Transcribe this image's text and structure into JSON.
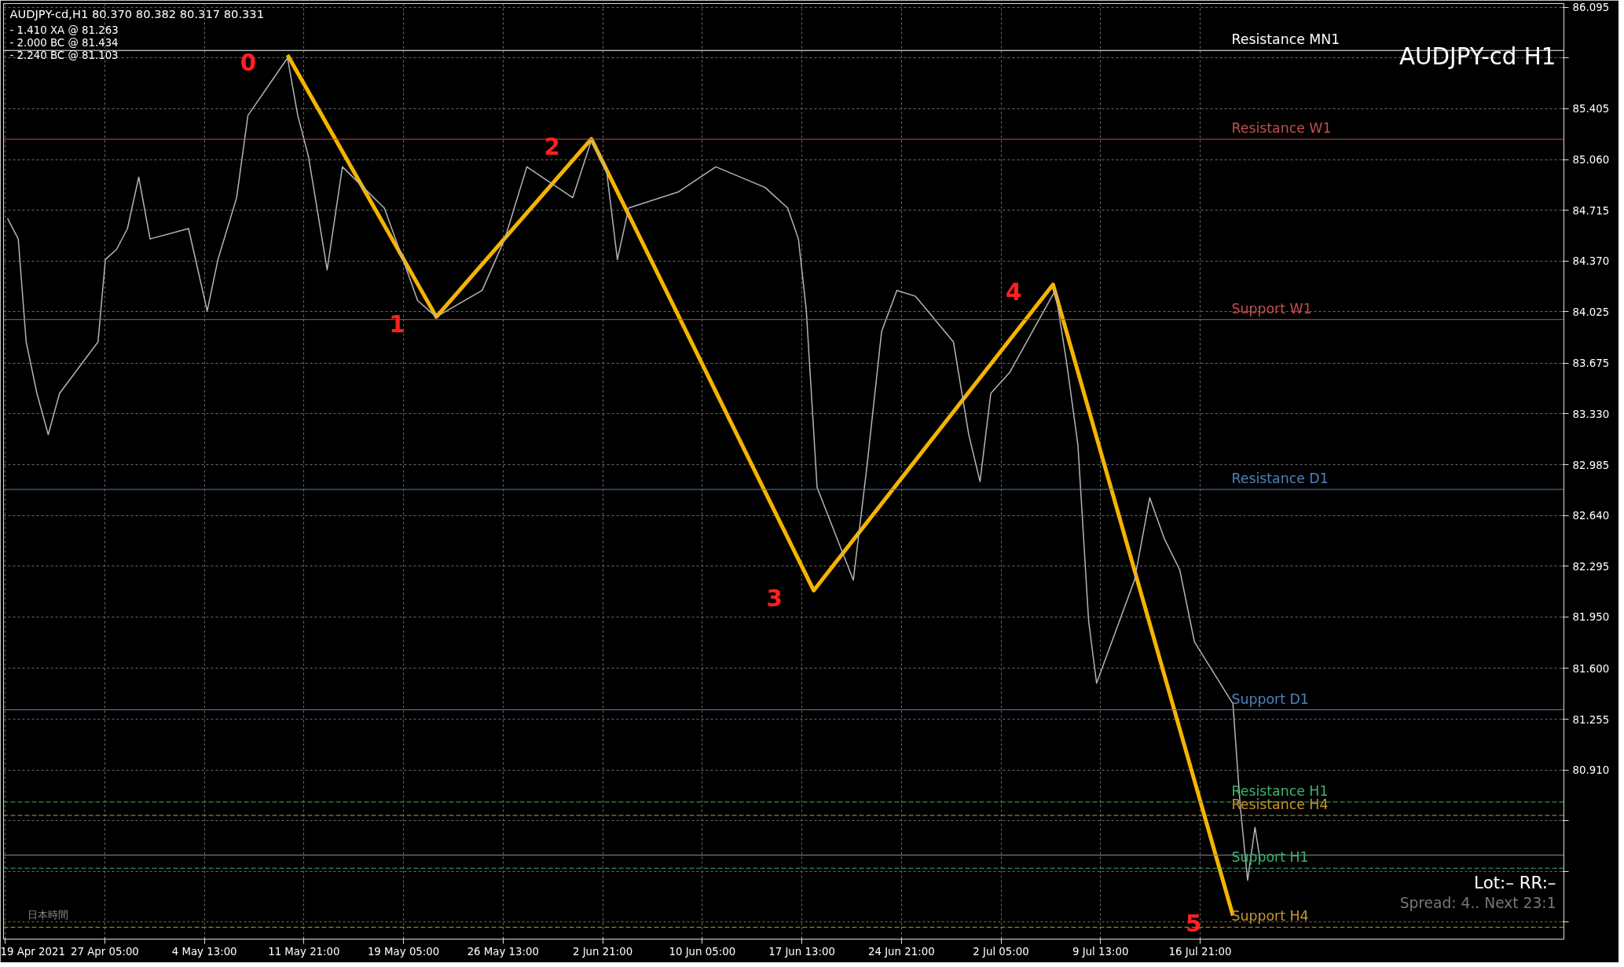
{
  "chart_data": {
    "type": "line",
    "title": "AUDJPY-cd H1",
    "annotations": [
      "AUDJPY-cd,H1  80.370 80.382 80.317 80.331",
      "- 1.410 XA @ 81.263",
      "- 2.000 BC @ 81.434",
      "- 2.240 BC @ 81.103",
      "日本時間",
      "Lot:– RR:–",
      "Spread: 4.. Next 23:1",
      {
        "text": "0",
        "x": "2021-05-10T16:00",
        "y": 85.77
      },
      {
        "text": "1",
        "x": "2021-05-21T15:00",
        "y": 83.99
      },
      {
        "text": "2",
        "x": "2021-06-02T01:00",
        "y": 85.2
      },
      {
        "text": "3",
        "x": "2021-06-18T10:00",
        "y": 82.13
      },
      {
        "text": "4",
        "x": "2021-07-06T01:00",
        "y": 84.21
      },
      {
        "text": "5",
        "x": "2021-07-19T07:00",
        "y": 79.92
      }
    ],
    "series": [
      {
        "color": "#b4b4b4",
        "x": [
          "2021-04-20T01:00",
          "2021-04-20T20:00",
          "2021-04-21T10:00",
          "2021-04-22T05:00",
          "2021-04-23T01:00",
          "2021-04-23T21:00",
          "2021-04-26T17:00",
          "2021-04-27T06:00",
          "2021-04-28T02:00",
          "2021-04-28T21:00",
          "2021-04-29T17:00",
          "2021-04-30T13:00",
          "2021-05-03T09:00",
          "2021-05-04T18:00",
          "2021-05-05T13:00",
          "2021-05-06T22:00",
          "2021-05-07T18:00",
          "2021-05-10T16:00",
          "2021-05-11T10:00",
          "2021-05-12T05:00",
          "2021-05-13T14:00",
          "2021-05-14T17:00",
          "2021-05-17T19:00",
          "2021-05-19T04:00",
          "2021-05-20T06:00",
          "2021-05-21T15:00",
          "2021-05-25T00:00",
          "2021-05-26T16:00",
          "2021-05-28T07:00",
          "2021-05-31T16:00",
          "2021-06-02T01:00",
          "2021-06-03T04:00",
          "2021-06-03T23:00",
          "2021-06-04T19:00",
          "2021-06-08T11:00",
          "2021-06-11T05:00",
          "2021-06-14T20:00",
          "2021-06-16T12:00",
          "2021-06-17T07:00",
          "2021-06-17T21:00",
          "2021-06-18T16:00",
          "2021-06-21T08:00",
          "2021-06-22T08:00",
          "2021-06-23T10:00",
          "2021-06-24T13:00",
          "2021-06-25T22:00",
          "2021-06-28T17:00",
          "2021-06-29T20:00",
          "2021-06-30T16:00",
          "2021-07-01T11:00",
          "2021-07-02T20:00",
          "2021-07-06T05:00",
          "2021-07-07T01:00",
          "2021-07-07T21:00",
          "2021-07-08T16:00",
          "2021-07-09T06:00",
          "2021-07-12T01:00",
          "2021-07-13T04:00",
          "2021-07-14T06:00",
          "2021-07-15T09:00",
          "2021-07-16T11:00",
          "2021-07-19T07:00",
          "2021-07-19T20:00",
          "2021-07-20T09:00",
          "2021-07-20T22:00",
          "2021-07-21T07:00"
        ],
        "values": [
          84.66,
          84.52,
          83.82,
          83.47,
          83.19,
          83.47,
          83.82,
          84.38,
          84.45,
          84.59,
          84.94,
          84.52,
          84.59,
          84.03,
          84.38,
          84.8,
          85.36,
          85.75,
          85.36,
          85.08,
          84.31,
          85.01,
          84.73,
          84.38,
          84.1,
          83.99,
          84.17,
          84.52,
          85.01,
          84.8,
          85.19,
          84.98,
          84.38,
          84.73,
          84.84,
          85.01,
          84.87,
          84.73,
          84.52,
          84.03,
          82.83,
          82.2,
          82.97,
          83.89,
          84.17,
          84.13,
          83.82,
          83.19,
          82.87,
          83.47,
          83.61,
          84.17,
          83.68,
          83.12,
          81.92,
          81.5,
          82.2,
          82.76,
          82.48,
          82.27,
          81.78,
          81.36,
          80.66,
          80.16,
          80.52,
          80.3
        ]
      },
      {
        "color": "#f5b400",
        "marker": "none",
        "x": [
          "2021-05-10T16:00",
          "2021-05-21T15:00",
          "2021-06-02T01:00",
          "2021-06-18T10:00",
          "2021-07-06T01:00",
          "2021-07-19T07:00"
        ],
        "values": [
          85.77,
          83.99,
          85.2,
          82.13,
          84.21,
          79.92
        ]
      }
    ],
    "xlim": [
      "2021-04-19T18:00",
      "2021-08-12T16:00"
    ],
    "xticks": [
      {
        "value": "2021-04-19T21:00",
        "label": "19 Apr 2021"
      },
      {
        "value": "2021-04-27T05:00",
        "label": "27 Apr 05:00"
      },
      {
        "value": "2021-05-04T13:00",
        "label": "4 May 13:00"
      },
      {
        "value": "2021-05-11T21:00",
        "label": "11 May 21:00"
      },
      {
        "value": "2021-05-19T05:00",
        "label": "19 May 05:00"
      },
      {
        "value": "2021-05-26T13:00",
        "label": "26 May 13:00"
      },
      {
        "value": "2021-06-02T21:00",
        "label": "2 Jun 21:00"
      },
      {
        "value": "2021-06-10T05:00",
        "label": "10 Jun 05:00"
      },
      {
        "value": "2021-06-17T13:00",
        "label": "17 Jun 13:00"
      },
      {
        "value": "2021-06-24T21:00",
        "label": "24 Jun 21:00"
      },
      {
        "value": "2021-07-02T05:00",
        "label": "2 Jul 05:00"
      },
      {
        "value": "2021-07-09T13:00",
        "label": "9 Jul 13:00"
      },
      {
        "value": "2021-07-16T21:00",
        "label": "16 Jul 21:00"
      }
    ],
    "ylim": [
      79.76,
      86.12
    ],
    "yticks": [
      {
        "value": 86.095,
        "label": "86.095"
      },
      {
        "value": 85.75,
        "label": null
      },
      {
        "value": 85.405,
        "label": "85.405"
      },
      {
        "value": 85.06,
        "label": "85.060"
      },
      {
        "value": 84.715,
        "label": "84.715"
      },
      {
        "value": 84.37,
        "label": "84.370"
      },
      {
        "value": 84.025,
        "label": "84.025"
      },
      {
        "value": 83.675,
        "label": "83.675"
      },
      {
        "value": 83.33,
        "label": "83.330"
      },
      {
        "value": 82.985,
        "label": "82.985"
      },
      {
        "value": 82.64,
        "label": "82.640"
      },
      {
        "value": 82.295,
        "label": "82.295"
      },
      {
        "value": 81.95,
        "label": "81.950"
      },
      {
        "value": 81.6,
        "label": "81.600"
      },
      {
        "value": 81.255,
        "label": "81.255"
      },
      {
        "value": 80.91,
        "label": "80.910"
      },
      {
        "value": 80.565,
        "label": null
      },
      {
        "value": 80.22,
        "label": null
      },
      {
        "value": 79.875,
        "label": null
      }
    ],
    "ref_lines": [
      {
        "axis": "y",
        "value": 85.801,
        "label": "Resistance MN1",
        "color": "#ffffff",
        "line_style": "solid"
      },
      {
        "axis": "y",
        "value": 85.198,
        "label": "Resistance W1",
        "color": "#c0504d",
        "line_style": "solid"
      },
      {
        "axis": "y",
        "value": 83.972,
        "label": "Support W1",
        "color": "#c0504d",
        "line_style": "solid"
      },
      {
        "axis": "y",
        "value": 82.817,
        "label": "Resistance D1",
        "color": "#4f81bd",
        "line_style": "solid"
      },
      {
        "axis": "y",
        "value": 81.319,
        "label": "Support D1",
        "color": "#4f81bd",
        "line_style": "solid"
      },
      {
        "axis": "y",
        "value": 80.692,
        "label": "Resistance H1",
        "color": "#3cb371",
        "line_style": "dashed"
      },
      {
        "axis": "y",
        "value": 80.601,
        "label": "Resistance H4",
        "color": "#c8962d",
        "line_style": "dashed"
      },
      {
        "axis": "y",
        "value": 80.331,
        "label": null,
        "color": "#8c8c8c",
        "line_style": "solid"
      },
      {
        "axis": "y",
        "value": 80.242,
        "label": "Support H1",
        "color": "#3cb371",
        "line_style": "dashed"
      },
      {
        "axis": "y",
        "value": 79.841,
        "label": "Support H4",
        "color": "#c8962d",
        "line_style": "dashed"
      }
    ],
    "grid": true
  }
}
